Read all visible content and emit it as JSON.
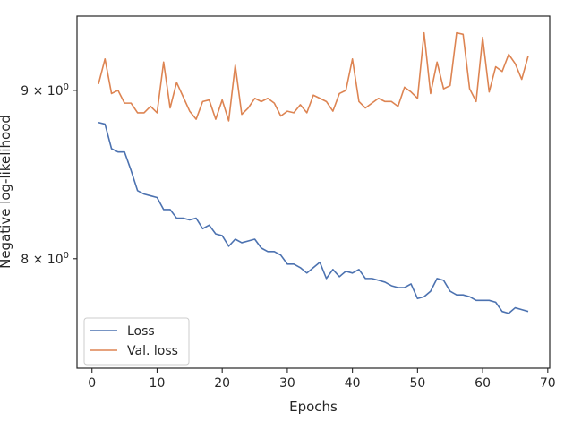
{
  "chart_data": {
    "type": "line",
    "title": "",
    "xlabel": "Epochs",
    "ylabel": "Negative log-likelihood",
    "yscale": "log",
    "xlim": [
      -2.3,
      70.3
    ],
    "ylim": [
      7.41,
      9.48
    ],
    "xticks": [
      0,
      10,
      20,
      30,
      40,
      50,
      60,
      70
    ],
    "yticks": [
      {
        "value": 8,
        "label_base": "8 × 10",
        "label_exp": "0"
      },
      {
        "value": 9,
        "label_base": "9 × 10",
        "label_exp": "0"
      }
    ],
    "grid": false,
    "legend_location": "lower-left",
    "x": [
      1,
      2,
      3,
      4,
      5,
      6,
      7,
      8,
      9,
      10,
      11,
      12,
      13,
      14,
      15,
      16,
      17,
      18,
      19,
      20,
      21,
      22,
      23,
      24,
      25,
      26,
      27,
      28,
      29,
      30,
      31,
      32,
      33,
      34,
      35,
      36,
      37,
      38,
      39,
      40,
      41,
      42,
      43,
      44,
      45,
      46,
      47,
      48,
      49,
      50,
      51,
      52,
      53,
      54,
      55,
      56,
      57,
      58,
      59,
      60,
      61,
      62,
      63,
      64,
      65,
      66,
      67
    ],
    "series": [
      {
        "name": "Loss",
        "color": "#4c72b0",
        "values": [
          8.8,
          8.79,
          8.64,
          8.62,
          8.62,
          8.51,
          8.39,
          8.37,
          8.36,
          8.35,
          8.28,
          8.28,
          8.23,
          8.23,
          8.22,
          8.23,
          8.17,
          8.19,
          8.14,
          8.13,
          8.07,
          8.11,
          8.09,
          8.1,
          8.11,
          8.06,
          8.04,
          8.04,
          8.02,
          7.97,
          7.97,
          7.95,
          7.92,
          7.95,
          7.98,
          7.89,
          7.94,
          7.9,
          7.93,
          7.92,
          7.94,
          7.89,
          7.89,
          7.88,
          7.87,
          7.85,
          7.84,
          7.84,
          7.86,
          7.78,
          7.79,
          7.82,
          7.89,
          7.88,
          7.82,
          7.8,
          7.8,
          7.79,
          7.77,
          7.77,
          7.77,
          7.76,
          7.71,
          7.7,
          7.73,
          7.72,
          7.71
        ]
      },
      {
        "name": "Val. loss",
        "color": "#dd8452",
        "values": [
          9.04,
          9.2,
          8.98,
          9.0,
          8.92,
          8.92,
          8.86,
          8.86,
          8.9,
          8.86,
          9.18,
          8.89,
          9.05,
          8.96,
          8.87,
          8.82,
          8.93,
          8.94,
          8.82,
          8.94,
          8.81,
          9.16,
          8.85,
          8.89,
          8.95,
          8.93,
          8.95,
          8.92,
          8.84,
          8.87,
          8.86,
          8.91,
          8.86,
          8.97,
          8.95,
          8.93,
          8.87,
          8.98,
          9.0,
          9.2,
          8.93,
          8.89,
          8.92,
          8.95,
          8.93,
          8.93,
          8.9,
          9.02,
          8.99,
          8.95,
          9.37,
          8.98,
          9.18,
          9.01,
          9.03,
          9.37,
          9.36,
          9.01,
          8.93,
          9.34,
          8.99,
          9.15,
          9.12,
          9.23,
          9.17,
          9.07,
          9.22
        ]
      }
    ]
  }
}
